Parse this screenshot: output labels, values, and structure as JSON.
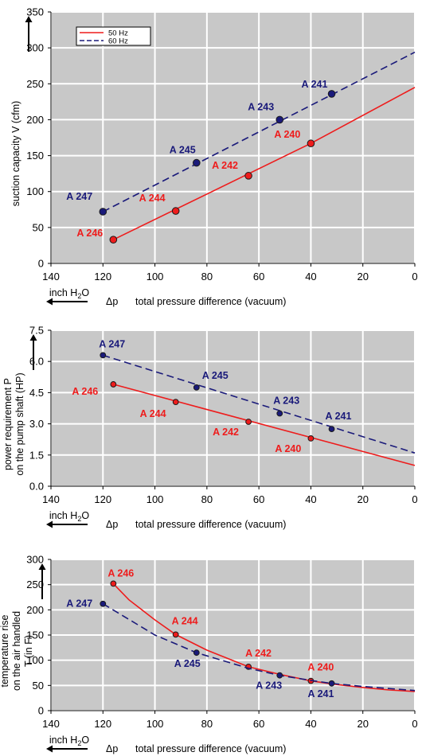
{
  "colors": {
    "s50": "#ee1c1c",
    "s60": "#1a1a7a",
    "plot_bg": "#c8c8c8",
    "grid": "#ffffff"
  },
  "xaxis": {
    "label": "total pressure difference (vacuum)",
    "delta_symbol": "Δp",
    "unit": "inch H",
    "unit_sub": "2",
    "unit_tail": "O",
    "reversed": true,
    "xlim": [
      0,
      140
    ],
    "ticks": [
      140,
      120,
      100,
      80,
      60,
      40,
      20,
      0
    ]
  },
  "legend": {
    "location": "top-left",
    "items": [
      "50 Hz",
      "60 Hz"
    ]
  },
  "chart_data": [
    {
      "type": "line",
      "ylabel": "suction capacity V (cfm)",
      "ylim": [
        0,
        350
      ],
      "yticks": [
        0,
        50,
        100,
        150,
        200,
        250,
        300,
        350
      ],
      "ytick_labels": [
        "0",
        "50",
        "100",
        "150",
        "200",
        "250",
        "300",
        "350"
      ],
      "grid": true,
      "series": [
        {
          "name": "50 Hz",
          "style": "solid",
          "curve": {
            "x": [
              116,
              40,
              0
            ],
            "y": [
              33,
              167,
              245
            ]
          },
          "points": [
            {
              "label": "A 246",
              "x": 116,
              "y": 33
            },
            {
              "label": "A 244",
              "x": 92,
              "y": 73
            },
            {
              "label": "A 242",
              "x": 64,
              "y": 122
            },
            {
              "label": "A 240",
              "x": 40,
              "y": 167
            }
          ]
        },
        {
          "name": "60 Hz",
          "style": "dashed",
          "curve": {
            "x": [
              120,
              0
            ],
            "y": [
              72,
              294
            ]
          },
          "points": [
            {
              "label": "A 247",
              "x": 120,
              "y": 72
            },
            {
              "label": "A 245",
              "x": 84,
              "y": 140
            },
            {
              "label": "A 243",
              "x": 52,
              "y": 200
            },
            {
              "label": "A 241",
              "x": 32,
              "y": 236
            }
          ]
        }
      ]
    },
    {
      "type": "line",
      "ylabel": "power requirement P",
      "ylabel2": "on the pump shaft (HP)",
      "ylim": [
        0,
        7.5
      ],
      "yticks": [
        0,
        1.5,
        3,
        4.5,
        6,
        7.5
      ],
      "ytick_labels": [
        "0.0",
        "1.5",
        "3.0",
        "4.5",
        "6.0",
        "7.5"
      ],
      "grid": true,
      "series": [
        {
          "name": "50 Hz",
          "style": "solid",
          "curve": {
            "x": [
              116,
              0
            ],
            "y": [
              4.9,
              1.0
            ]
          },
          "points": [
            {
              "label": "A 246",
              "x": 116,
              "y": 4.9
            },
            {
              "label": "A 244",
              "x": 92,
              "y": 4.05
            },
            {
              "label": "A 242",
              "x": 64,
              "y": 3.1
            },
            {
              "label": "A 240",
              "x": 40,
              "y": 2.3
            }
          ]
        },
        {
          "name": "60 Hz",
          "style": "dashed",
          "curve": {
            "x": [
              120,
              0
            ],
            "y": [
              6.3,
              1.6
            ]
          },
          "points": [
            {
              "label": "A 247",
              "x": 120,
              "y": 6.3
            },
            {
              "label": "A 245",
              "x": 84,
              "y": 4.75
            },
            {
              "label": "A 243",
              "x": 52,
              "y": 3.5
            },
            {
              "label": "A 241",
              "x": 32,
              "y": 2.75
            }
          ]
        }
      ]
    },
    {
      "type": "line",
      "ylabel": "temperature rise",
      "ylabel2": "on the air handled",
      "ylabel3": "T     (in F)",
      "ylim": [
        0,
        300
      ],
      "yticks": [
        0,
        50,
        100,
        150,
        200,
        250,
        300
      ],
      "ytick_labels": [
        "0",
        "50",
        "100",
        "150",
        "200",
        "250",
        "300"
      ],
      "grid": true,
      "series": [
        {
          "name": "50 Hz",
          "style": "solid",
          "curve": {
            "x": [
              116,
              110,
              100,
              92,
              80,
              64,
              52,
              40,
              32,
              20,
              10,
              0
            ],
            "y": [
              252,
              220,
              180,
              151,
              120,
              87,
              72,
              59,
              53,
              46,
              41,
              38
            ]
          },
          "points": [
            {
              "label": "A 246",
              "x": 116,
              "y": 252
            },
            {
              "label": "A 244",
              "x": 92,
              "y": 151
            },
            {
              "label": "A 242",
              "x": 64,
              "y": 87
            },
            {
              "label": "A 240",
              "x": 40,
              "y": 59
            }
          ]
        },
        {
          "name": "60 Hz",
          "style": "dashed",
          "curve": {
            "x": [
              120,
              100,
              84,
              64,
              52,
              40,
              32,
              20,
              0
            ],
            "y": [
              212,
              150,
              115,
              84,
              70,
              60,
              54,
              48,
              40
            ]
          },
          "points": [
            {
              "label": "A 247",
              "x": 120,
              "y": 212
            },
            {
              "label": "A 245",
              "x": 84,
              "y": 115
            },
            {
              "label": "A 243",
              "x": 52,
              "y": 70
            },
            {
              "label": "A 241",
              "x": 32,
              "y": 54
            }
          ]
        }
      ]
    }
  ]
}
